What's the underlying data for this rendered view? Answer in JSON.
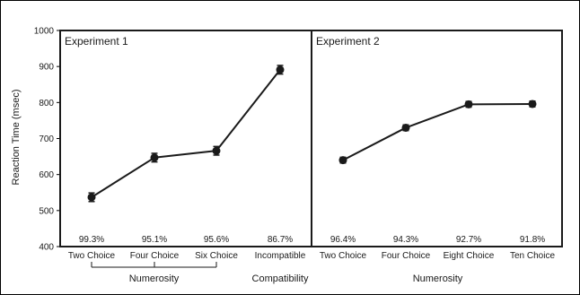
{
  "chart_data": [
    {
      "type": "line",
      "title": "Experiment 1",
      "ylabel": "Reaction Time (msec)",
      "ylim": [
        400,
        1000
      ],
      "yticks": [
        400,
        500,
        600,
        700,
        800,
        900,
        1000
      ],
      "categories": [
        "Two Choice",
        "Four Choice",
        "Six Choice",
        "Incompatible"
      ],
      "series": [
        {
          "values": [
            537,
            647,
            666,
            891
          ],
          "errors": [
            12,
            12,
            12,
            12
          ],
          "connected": [
            true,
            true,
            true,
            true
          ]
        }
      ],
      "accuracy_labels": [
        "99.3%",
        "95.1%",
        "95.6%",
        "86.7%"
      ],
      "group_labels": [
        {
          "label": "Numerosity",
          "span": [
            0,
            2
          ]
        },
        {
          "label": "Compatibility",
          "span": [
            3,
            3
          ]
        }
      ]
    },
    {
      "type": "line",
      "title": "Experiment 2",
      "ylim": [
        400,
        1000
      ],
      "categories": [
        "Two Choice",
        "Four Choice",
        "Eight Choice",
        "Ten Choice"
      ],
      "series": [
        {
          "values": [
            640,
            730,
            795,
            796
          ],
          "errors": [
            8,
            8,
            8,
            8
          ],
          "connected": [
            true,
            true,
            true,
            true
          ]
        }
      ],
      "accuracy_labels": [
        "96.4%",
        "94.3%",
        "92.7%",
        "91.8%"
      ],
      "group_labels": [
        {
          "label": "Numerosity",
          "span": [
            0,
            3
          ]
        }
      ]
    }
  ]
}
